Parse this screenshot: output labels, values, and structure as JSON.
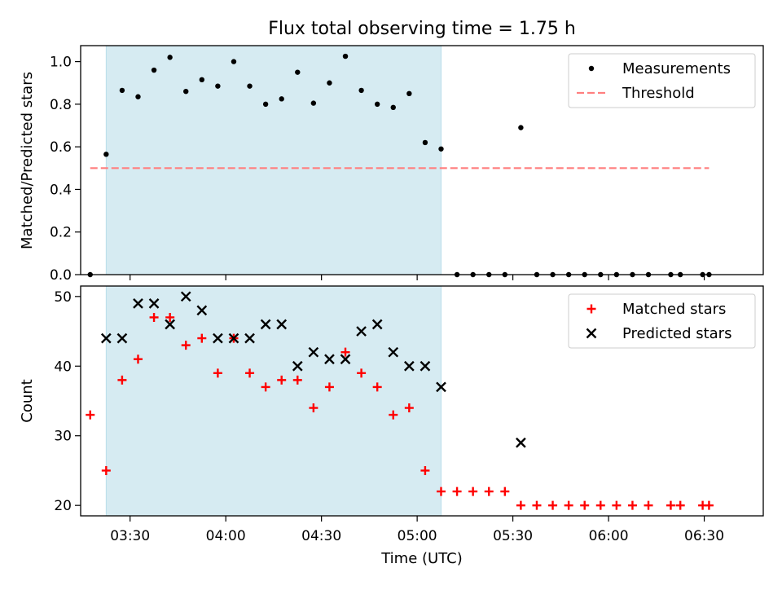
{
  "chart_data": {
    "title": "Flux total observing time = 1.75 h",
    "xlabel": "Time (UTC)",
    "x_ticks": [
      "03:30",
      "04:00",
      "04:30",
      "05:00",
      "05:30",
      "06:00",
      "06:30"
    ],
    "x_tick_values": [
      210,
      240,
      270,
      300,
      330,
      360,
      390
    ],
    "x_unit": "minutes since 00:00 UTC",
    "xlim": [
      194.5,
      408.5
    ],
    "shaded_span": [
      202.5,
      307.5
    ],
    "colors": {
      "shade": "#add8e6",
      "threshold": "#ff7f7f",
      "matched": "#ff0000",
      "predicted": "#000000",
      "measurements": "#000000"
    },
    "panels": [
      {
        "type": "scatter",
        "ylabel": "Matched/Predicted stars",
        "ylim": [
          0.0,
          1.075
        ],
        "yticks": [
          "0.0",
          "0.2",
          "0.4",
          "0.6",
          "0.8",
          "1.0"
        ],
        "ytick_values": [
          0.0,
          0.2,
          0.4,
          0.6,
          0.8,
          1.0
        ],
        "legend_position": "upper right",
        "series": [
          {
            "name": "Measurements",
            "marker": "dot",
            "x": [
              197.5,
              202.5,
              207.5,
              212.5,
              217.5,
              222.5,
              227.5,
              232.5,
              237.5,
              242.5,
              247.5,
              252.5,
              257.5,
              262.5,
              267.5,
              272.5,
              277.5,
              282.5,
              287.5,
              292.5,
              297.5,
              302.5,
              307.5,
              312.5,
              317.5,
              322.5,
              327.5,
              332.5,
              337.5,
              342.5,
              347.5,
              352.5,
              357.5,
              362.5,
              367.5,
              372.5,
              379.5,
              382.5,
              389.5,
              391.5
            ],
            "y": [
              0.0,
              0.565,
              0.865,
              0.835,
              0.96,
              1.02,
              0.86,
              0.915,
              0.885,
              1.0,
              0.885,
              0.8,
              0.825,
              0.95,
              0.805,
              0.9,
              1.025,
              0.865,
              0.8,
              0.785,
              0.85,
              0.62,
              0.59,
              0.0,
              0.0,
              0.0,
              0.0,
              0.69,
              0.0,
              0.0,
              0.0,
              0.0,
              0.0,
              0.0,
              0.0,
              0.0,
              0.0,
              0.0,
              0.0,
              0.0
            ]
          },
          {
            "name": "Threshold",
            "marker": "dashed-line",
            "x": [
              197.5,
              391.5
            ],
            "y": [
              0.5,
              0.5
            ]
          }
        ]
      },
      {
        "type": "scatter",
        "ylabel": "Count",
        "ylim": [
          18.5,
          51.5
        ],
        "yticks": [
          "20",
          "30",
          "40",
          "50"
        ],
        "ytick_values": [
          20,
          30,
          40,
          50
        ],
        "legend_position": "upper right",
        "series": [
          {
            "name": "Matched stars",
            "marker": "plus",
            "x": [
              197.5,
              202.5,
              207.5,
              212.5,
              217.5,
              222.5,
              227.5,
              232.5,
              237.5,
              242.5,
              247.5,
              252.5,
              257.5,
              262.5,
              267.5,
              272.5,
              277.5,
              282.5,
              287.5,
              292.5,
              297.5,
              302.5,
              307.5,
              312.5,
              317.5,
              322.5,
              327.5,
              332.5,
              337.5,
              342.5,
              347.5,
              352.5,
              357.5,
              362.5,
              367.5,
              372.5,
              379.5,
              382.5,
              389.5,
              391.5
            ],
            "y": [
              33,
              25,
              38,
              41,
              47,
              47,
              43,
              44,
              39,
              44,
              39,
              37,
              38,
              38,
              34,
              37,
              42,
              39,
              37,
              33,
              34,
              25,
              22,
              22,
              22,
              22,
              22,
              20,
              20,
              20,
              20,
              20,
              20,
              20,
              20,
              20,
              20,
              20,
              20,
              20
            ]
          },
          {
            "name": "Predicted stars",
            "marker": "x",
            "x": [
              202.5,
              207.5,
              212.5,
              217.5,
              222.5,
              227.5,
              232.5,
              237.5,
              242.5,
              247.5,
              252.5,
              257.5,
              262.5,
              267.5,
              272.5,
              277.5,
              282.5,
              287.5,
              292.5,
              297.5,
              302.5,
              307.5,
              332.5
            ],
            "y": [
              44,
              44,
              49,
              49,
              46,
              50,
              48,
              44,
              44,
              44,
              46,
              46,
              40,
              42,
              41,
              41,
              45,
              46,
              42,
              40,
              40,
              37,
              29
            ]
          }
        ]
      }
    ]
  }
}
